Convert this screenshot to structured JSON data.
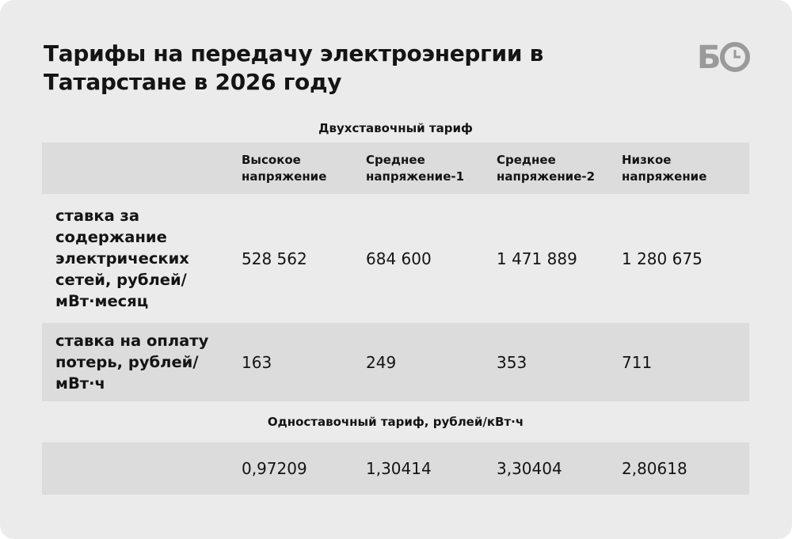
{
  "header": {
    "title": "Тарифы на передачу электроэнергии в Татарстане в 2026 году",
    "logo": "Б"
  },
  "sections": [
    {
      "heading": "Двухставочный тариф",
      "columns": [
        "Высокое напряжение",
        "Среднее напряжение-1",
        "Среднее напряжение-2",
        "Низкое напряжение"
      ],
      "rows": [
        {
          "label": "ставка за содержание электрических сетей, рублей/ мВт·месяц",
          "cells": [
            "528 562",
            "684 600",
            "1 471 889",
            "1 280 675"
          ]
        },
        {
          "label": "ставка на оплату потерь, рублей/ мВт·ч",
          "cells": [
            "163",
            "249",
            "353",
            "711"
          ]
        }
      ]
    },
    {
      "heading": "Одноставочный тариф, рублей/кВт·ч",
      "rows": [
        {
          "cells": [
            "0,97209",
            "1,30414",
            "3,30404",
            "2,80618"
          ]
        }
      ]
    }
  ]
}
